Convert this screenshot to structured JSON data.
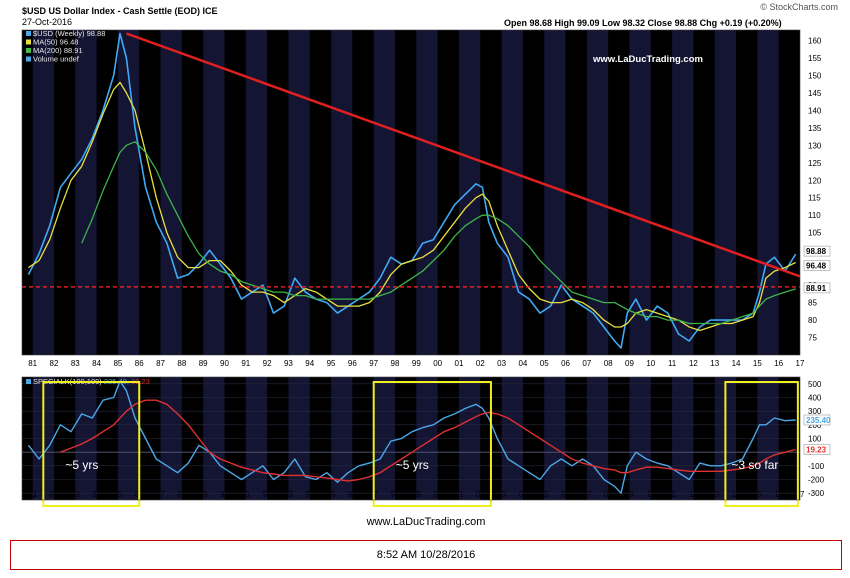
{
  "header": {
    "symbol": "$USD US Dollar Index - Cash Settle (EOD) ICE",
    "date": "27-Oct-2016",
    "quote": "Open 98.68  High 99.09  Low 98.32  Close 98.88  Chg +0.19 (+0.20%)",
    "copyright": "© StockCharts.com"
  },
  "legend_main": [
    {
      "label": "$USD (Weekly) 98.88",
      "color": "#4aa8e8"
    },
    {
      "label": "MA(50) 96.48",
      "color": "#e8e040"
    },
    {
      "label": "MA(200) 88.91",
      "color": "#40c040"
    },
    {
      "label": "Volume undef",
      "color": "#4aa8e8"
    }
  ],
  "watermark": "www.LaDucTrading.com",
  "legend_lower": {
    "name": "SPECIALK(100,100)",
    "v1": "235.40",
    "v2": "19.23",
    "v1_color": "#4aa8e8",
    "v2_color": "#e03030"
  },
  "annotations": [
    "~5 yrs",
    "~5 yrs",
    "~3 so far"
  ],
  "footer": {
    "site": "www.LaDucTrading.com",
    "timestamp": "8:52 AM 10/28/2016"
  },
  "colors": {
    "price": "#3fa9f5",
    "ma50": "#e8e040",
    "ma200": "#3cb44b",
    "trendline": "#e02020",
    "box": "#f0f020",
    "background": "#000000",
    "band": "#141433"
  },
  "chart_data": [
    {
      "type": "line",
      "title": "$USD US Dollar Index - Cash Settle (EOD)",
      "x": [
        1980.8,
        1981.3,
        1981.8,
        1982.3,
        1982.8,
        1983.3,
        1983.8,
        1984.3,
        1984.8,
        1985.1,
        1985.4,
        1985.8,
        1986.3,
        1986.8,
        1987.3,
        1987.8,
        1988.3,
        1988.8,
        1989.3,
        1989.8,
        1990.3,
        1990.8,
        1991.3,
        1991.8,
        1992.3,
        1992.8,
        1993.3,
        1993.8,
        1994.3,
        1994.8,
        1995.3,
        1995.8,
        1996.3,
        1996.8,
        1997.3,
        1997.8,
        1998.3,
        1998.8,
        1999.3,
        1999.8,
        2000.3,
        2000.8,
        2001.3,
        2001.8,
        2002.1,
        2002.4,
        2002.8,
        2003.3,
        2003.8,
        2004.3,
        2004.8,
        2005.3,
        2005.8,
        2006.3,
        2006.8,
        2007.3,
        2007.8,
        2008.3,
        2008.6,
        2008.9,
        2009.3,
        2009.8,
        2010.3,
        2010.8,
        2011.3,
        2011.8,
        2012.3,
        2012.8,
        2013.3,
        2013.8,
        2014.3,
        2014.8,
        2015.1,
        2015.4,
        2015.8,
        2016.3,
        2016.8
      ],
      "series": [
        {
          "name": "$USD (Weekly)",
          "values": [
            93,
            99,
            107,
            118,
            122,
            126,
            132,
            140,
            150,
            162,
            155,
            135,
            118,
            108,
            102,
            92,
            93,
            96,
            100,
            96,
            92,
            86,
            88,
            90,
            82,
            84,
            92,
            88,
            86,
            85,
            82,
            84,
            86,
            88,
            92,
            98,
            96,
            97,
            102,
            103,
            108,
            113,
            116,
            119,
            118,
            108,
            102,
            98,
            88,
            86,
            82,
            84,
            90,
            86,
            84,
            82,
            78,
            74,
            72,
            82,
            86,
            80,
            84,
            82,
            76,
            74,
            78,
            80,
            80,
            80,
            80,
            82,
            88,
            96,
            98,
            94,
            98.88
          ]
        },
        {
          "name": "MA(50)",
          "values": [
            95,
            97,
            103,
            112,
            120,
            124,
            131,
            139,
            146,
            148,
            145,
            140,
            128,
            115,
            105,
            98,
            95,
            95,
            97,
            97,
            94,
            90,
            88,
            88,
            87,
            85,
            87,
            89,
            88,
            86,
            84,
            84,
            84,
            85,
            88,
            93,
            96,
            97,
            98,
            100,
            104,
            108,
            112,
            115,
            116,
            114,
            107,
            100,
            93,
            89,
            86,
            85,
            85,
            86,
            85,
            83,
            80,
            78,
            78,
            79,
            82,
            83,
            82,
            81,
            80,
            78,
            77,
            78,
            79,
            79,
            80,
            81,
            85,
            92,
            94,
            95,
            96.48
          ]
        },
        {
          "name": "MA(200)",
          "values": [
            null,
            null,
            null,
            null,
            null,
            102,
            109,
            117,
            124,
            128,
            130,
            131,
            128,
            123,
            116,
            110,
            104,
            99,
            96,
            94,
            93,
            91,
            90,
            89,
            88,
            88,
            87,
            87,
            86,
            86,
            86,
            86,
            86,
            86,
            87,
            88,
            90,
            92,
            94,
            97,
            100,
            104,
            107,
            109,
            110,
            110,
            109,
            107,
            104,
            101,
            97,
            94,
            91,
            88,
            87,
            86,
            85,
            85,
            84,
            83,
            82,
            81,
            81,
            80,
            80,
            79,
            79,
            79,
            79,
            80,
            81,
            82,
            84,
            86,
            87,
            88,
            88.91
          ]
        }
      ],
      "ylim": [
        70,
        163
      ],
      "yticks": [
        75,
        80,
        85,
        90,
        95,
        100,
        105,
        110,
        115,
        120,
        125,
        130,
        135,
        140,
        145,
        150,
        155,
        160
      ],
      "xtick_labels": [
        "81",
        "82",
        "83",
        "84",
        "85",
        "86",
        "87",
        "88",
        "89",
        "90",
        "91",
        "92",
        "93",
        "94",
        "95",
        "96",
        "97",
        "98",
        "99",
        "00",
        "01",
        "02",
        "03",
        "04",
        "05",
        "06",
        "07",
        "08",
        "09",
        "10",
        "11",
        "12",
        "13",
        "14",
        "15",
        "16",
        "17"
      ],
      "last_value_labels": [
        "98.88",
        "96.48",
        "88.91"
      ],
      "trendline": {
        "x": [
          1985.4,
          2017.0
        ],
        "y": [
          162,
          92.5
        ]
      },
      "reference_line": {
        "y": 89.5,
        "style": "dashed"
      }
    },
    {
      "type": "line",
      "title": "SPECIALK(100,100)",
      "x": [
        1980.8,
        1981.3,
        1981.8,
        1982.3,
        1982.8,
        1983.3,
        1983.8,
        1984.3,
        1984.8,
        1985.1,
        1985.4,
        1985.8,
        1986.3,
        1986.8,
        1987.3,
        1987.8,
        1988.3,
        1988.8,
        1989.3,
        1989.8,
        1990.3,
        1990.8,
        1991.3,
        1991.8,
        1992.3,
        1992.8,
        1993.3,
        1993.8,
        1994.3,
        1994.8,
        1995.3,
        1995.8,
        1996.3,
        1996.8,
        1997.3,
        1997.8,
        1998.3,
        1998.8,
        1999.3,
        1999.8,
        2000.3,
        2000.8,
        2001.3,
        2001.8,
        2002.1,
        2002.4,
        2002.8,
        2003.3,
        2003.8,
        2004.3,
        2004.8,
        2005.3,
        2005.8,
        2006.3,
        2006.8,
        2007.3,
        2007.8,
        2008.3,
        2008.6,
        2008.9,
        2009.3,
        2009.8,
        2010.3,
        2010.8,
        2011.3,
        2011.8,
        2012.3,
        2012.8,
        2013.3,
        2013.8,
        2014.3,
        2014.8,
        2015.1,
        2015.4,
        2015.8,
        2016.3,
        2016.8
      ],
      "series": [
        {
          "name": "SPECIALK",
          "values": [
            50,
            -50,
            50,
            200,
            150,
            280,
            250,
            380,
            400,
            520,
            450,
            250,
            100,
            -50,
            -100,
            -150,
            -80,
            50,
            0,
            -100,
            -150,
            -200,
            -150,
            -100,
            -200,
            -150,
            -50,
            -180,
            -200,
            -150,
            -220,
            -150,
            -100,
            -80,
            -50,
            80,
            100,
            150,
            180,
            200,
            250,
            280,
            320,
            350,
            320,
            250,
            100,
            -50,
            -100,
            -150,
            -200,
            -100,
            -50,
            -100,
            -50,
            -100,
            -200,
            -250,
            -300,
            -100,
            0,
            -50,
            -80,
            -100,
            -150,
            -200,
            -80,
            -100,
            -100,
            -80,
            -50,
            100,
            200,
            200,
            250,
            230,
            235.4
          ]
        },
        {
          "name": "Signal",
          "values": [
            null,
            null,
            null,
            0,
            30,
            60,
            100,
            150,
            200,
            250,
            300,
            350,
            380,
            380,
            350,
            280,
            200,
            100,
            0,
            -50,
            -80,
            -110,
            -130,
            -150,
            -160,
            -170,
            -170,
            -170,
            -180,
            -190,
            -200,
            -210,
            -200,
            -180,
            -150,
            -100,
            -50,
            0,
            50,
            100,
            150,
            180,
            220,
            260,
            280,
            290,
            280,
            250,
            200,
            150,
            100,
            50,
            0,
            -50,
            -80,
            -100,
            -120,
            -130,
            -150,
            -150,
            -130,
            -110,
            -110,
            -120,
            -130,
            -140,
            -140,
            -140,
            -140,
            -130,
            -120,
            -100,
            -80,
            -50,
            -20,
            0,
            19.23
          ]
        }
      ],
      "ylim": [
        -350,
        550
      ],
      "yticks": [
        -300,
        -200,
        -100,
        0,
        100,
        200,
        300,
        400,
        500
      ],
      "last_value_labels": [
        "235.40",
        "19.23"
      ],
      "highlight_boxes": [
        {
          "x": [
            1981.5,
            1986.0
          ],
          "label": "~5 yrs"
        },
        {
          "x": [
            1997.0,
            2002.5
          ],
          "label": "~5 yrs"
        },
        {
          "x": [
            2013.5,
            2016.9
          ],
          "label": "~3 so far"
        }
      ]
    }
  ]
}
